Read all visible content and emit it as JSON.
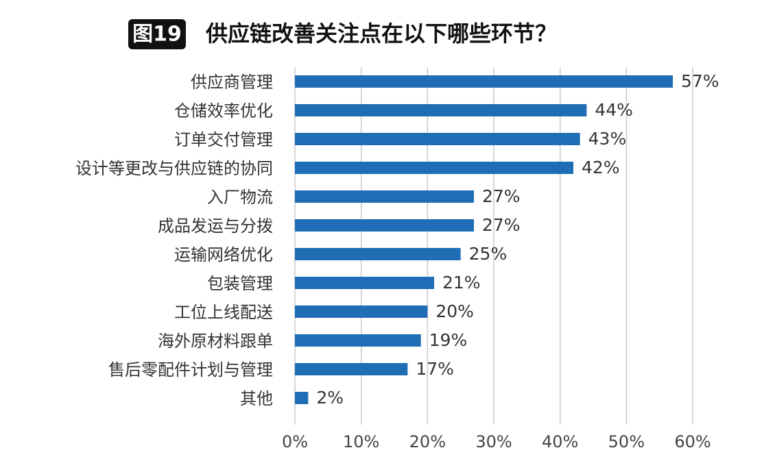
{
  "chart_data": {
    "type": "barh",
    "title_badge": "图19",
    "title": "供应链改善关注点在以下哪些环节？",
    "categories": [
      "供应商管理",
      "仓储效率优化",
      "订单交付管理",
      "设计等更改与供应链的协同",
      "入厂物流",
      "成品发运与分拨",
      "运输网络优化",
      "包装管理",
      "工位上线配送",
      "海外原材料跟单",
      "售后零配件计划与管理",
      "其他"
    ],
    "values": [
      57,
      44,
      43,
      42,
      27,
      27,
      25,
      21,
      20,
      19,
      17,
      2
    ],
    "value_labels": [
      "57%",
      "44%",
      "43%",
      "42%",
      "27%",
      "27%",
      "25%",
      "21%",
      "20%",
      "19%",
      "17%",
      "2%"
    ],
    "color": "#1f6db5",
    "xlim": [
      0,
      60
    ],
    "xticks": [
      {
        "value": 0,
        "label": "0%"
      },
      {
        "value": 10,
        "label": "10%"
      },
      {
        "value": 20,
        "label": "20%"
      },
      {
        "value": 30,
        "label": "30%"
      },
      {
        "value": 40,
        "label": "40%"
      },
      {
        "value": 50,
        "label": "50%"
      },
      {
        "value": 60,
        "label": "60%"
      }
    ],
    "grid": true
  }
}
